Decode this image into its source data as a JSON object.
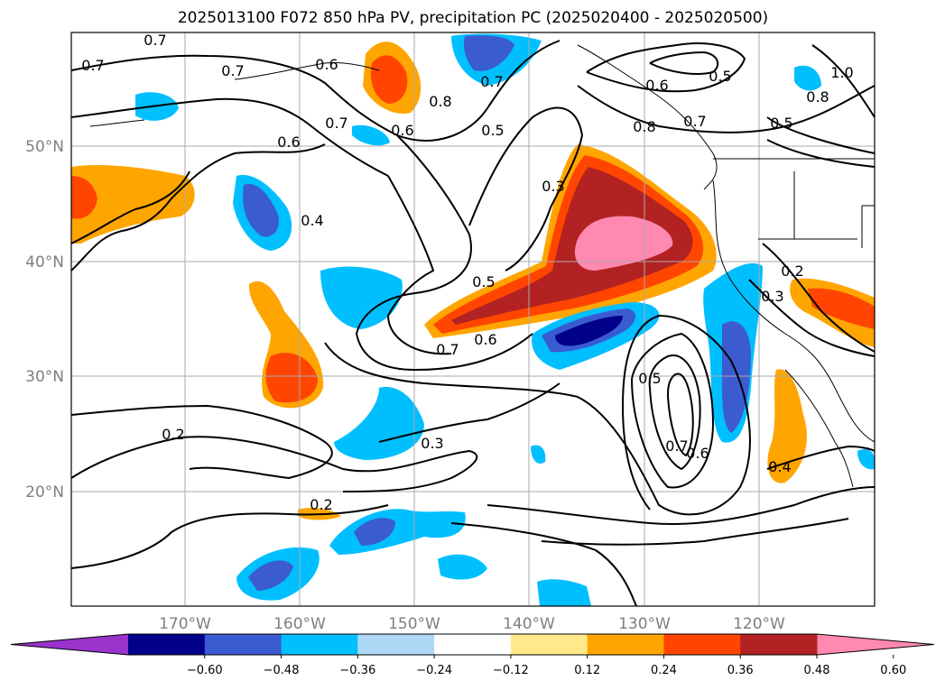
{
  "title": "2025013100 F072 850 hPa PV, precipitation PC (2025020400 - 2025020500)",
  "lat_labels": [
    "50°N",
    "40°N",
    "30°N",
    "20°N"
  ],
  "lon_labels": [
    "170°W",
    "160°W",
    "150°W",
    "140°W",
    "130°W",
    "120°W"
  ],
  "colorbar": {
    "ticks": [
      "−0.60",
      "−0.48",
      "−0.36",
      "−0.24",
      "−0.12",
      "0.12",
      "0.24",
      "0.36",
      "0.48",
      "0.60"
    ],
    "colors": [
      "#9933cc",
      "#00008b",
      "#3b5bd1",
      "#00bfff",
      "#add8f6",
      "#ffffff",
      "#ffe98a",
      "#ffa500",
      "#ff4500",
      "#b22222",
      "#ff89b0"
    ]
  },
  "contour_labels": [
    "0.7",
    "0.7",
    "0.7",
    "0.6",
    "0.8",
    "0.7",
    "0.5",
    "0.6",
    "0.5",
    "0.8",
    "0.7",
    "0.5",
    "1.0",
    "0.8",
    "0.6",
    "0.7",
    "0.6",
    "0.4",
    "0.3",
    "0.5",
    "0.7",
    "0.6",
    "0.2",
    "0.3",
    "0.5",
    "0.7",
    "0.6",
    "0.4",
    "0.2",
    "0.3",
    "0.2"
  ]
}
